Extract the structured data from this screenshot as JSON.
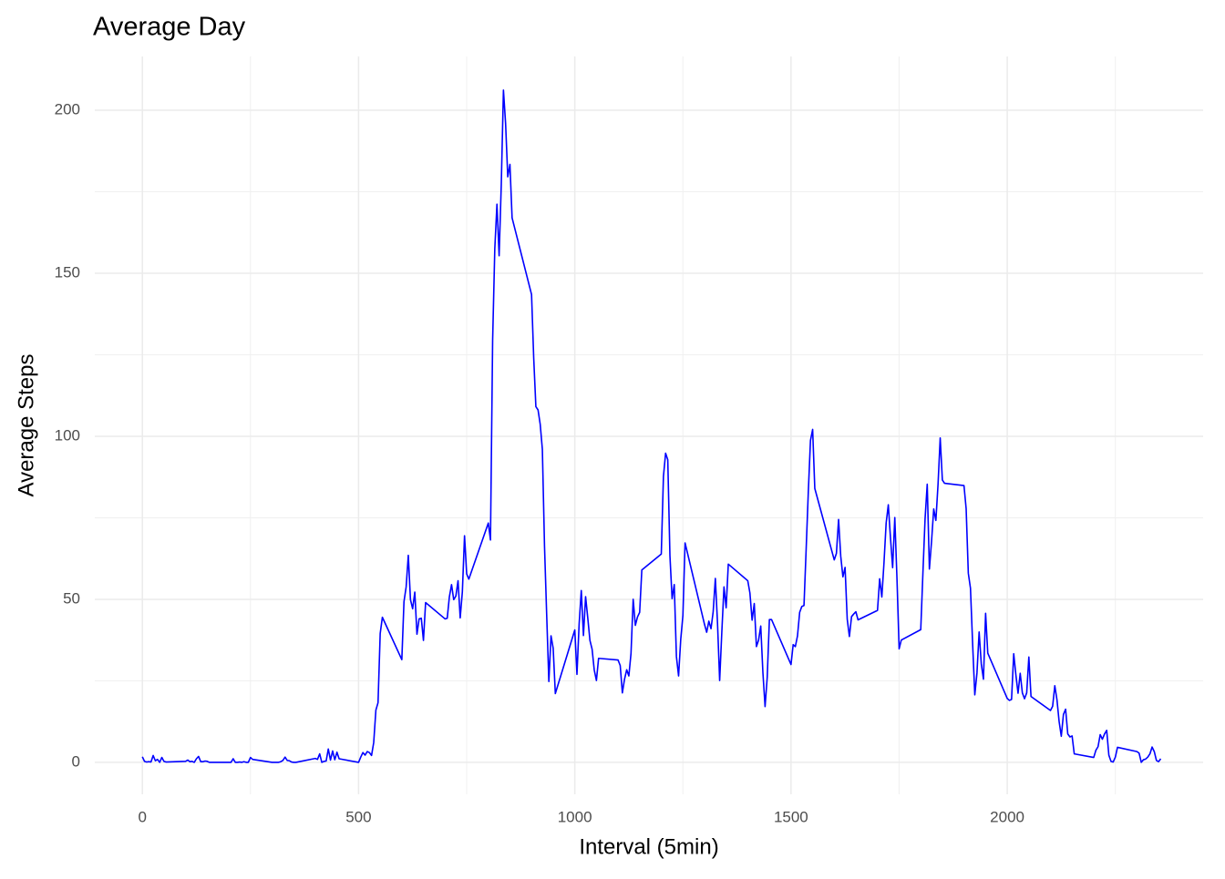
{
  "chart_data": {
    "type": "line",
    "title": "Average Day",
    "x_label": "Interval (5min)",
    "y_label": "Average Steps",
    "color": "#0000ff",
    "x": [
      0,
      5,
      10,
      15,
      20,
      25,
      30,
      35,
      40,
      45,
      50,
      55,
      100,
      105,
      110,
      115,
      120,
      125,
      130,
      135,
      140,
      145,
      150,
      155,
      200,
      205,
      210,
      215,
      220,
      225,
      230,
      235,
      240,
      245,
      250,
      255,
      300,
      305,
      310,
      315,
      320,
      325,
      330,
      335,
      340,
      345,
      350,
      355,
      400,
      405,
      410,
      415,
      420,
      425,
      430,
      435,
      440,
      445,
      450,
      455,
      500,
      505,
      510,
      515,
      520,
      525,
      530,
      535,
      540,
      545,
      550,
      555,
      600,
      605,
      610,
      615,
      620,
      625,
      630,
      635,
      640,
      645,
      650,
      655,
      700,
      705,
      710,
      715,
      720,
      725,
      730,
      735,
      740,
      745,
      750,
      755,
      800,
      805,
      810,
      815,
      820,
      825,
      830,
      835,
      840,
      845,
      850,
      855,
      900,
      905,
      910,
      915,
      920,
      925,
      930,
      935,
      940,
      945,
      950,
      955,
      1000,
      1005,
      1010,
      1015,
      1020,
      1025,
      1030,
      1035,
      1040,
      1045,
      1050,
      1055,
      1100,
      1105,
      1110,
      1115,
      1120,
      1125,
      1130,
      1135,
      1140,
      1145,
      1150,
      1155,
      1200,
      1205,
      1210,
      1215,
      1220,
      1225,
      1230,
      1235,
      1240,
      1245,
      1250,
      1255,
      1300,
      1305,
      1310,
      1315,
      1320,
      1325,
      1330,
      1335,
      1340,
      1345,
      1350,
      1355,
      1400,
      1405,
      1410,
      1415,
      1420,
      1425,
      1430,
      1435,
      1440,
      1445,
      1450,
      1455,
      1500,
      1505,
      1510,
      1515,
      1520,
      1525,
      1530,
      1535,
      1540,
      1545,
      1550,
      1555,
      1600,
      1605,
      1610,
      1615,
      1620,
      1625,
      1630,
      1635,
      1640,
      1645,
      1650,
      1655,
      1700,
      1705,
      1710,
      1715,
      1720,
      1725,
      1730,
      1735,
      1740,
      1745,
      1750,
      1755,
      1800,
      1805,
      1810,
      1815,
      1820,
      1825,
      1830,
      1835,
      1840,
      1845,
      1850,
      1855,
      1900,
      1905,
      1910,
      1915,
      1920,
      1925,
      1930,
      1935,
      1940,
      1945,
      1950,
      1955,
      2000,
      2005,
      2010,
      2015,
      2020,
      2025,
      2030,
      2035,
      2040,
      2045,
      2050,
      2055,
      2100,
      2105,
      2110,
      2115,
      2120,
      2125,
      2130,
      2135,
      2140,
      2145,
      2150,
      2155,
      2200,
      2205,
      2210,
      2215,
      2220,
      2225,
      2230,
      2235,
      2240,
      2245,
      2250,
      2255,
      2300,
      2305,
      2310,
      2315,
      2320,
      2325,
      2330,
      2335,
      2340,
      2345,
      2350,
      2355
    ],
    "values": [
      1.7,
      0.3,
      0.1,
      0.2,
      0.1,
      2.1,
      0.5,
      0.9,
      0,
      1.5,
      0.3,
      0.1,
      0.3,
      0.7,
      0.2,
      0.3,
      0,
      1.1,
      1.8,
      0.2,
      0.2,
      0.4,
      0.3,
      0,
      0,
      0,
      1.1,
      0,
      0,
      0.1,
      0,
      0.2,
      0,
      0,
      1.5,
      0.9,
      0,
      0,
      0,
      0,
      0.2,
      0.6,
      1.6,
      0.6,
      0.5,
      0.1,
      0,
      0,
      1.2,
      0.9,
      2.6,
      0,
      0.3,
      0.4,
      4.1,
      0.7,
      3.5,
      0.8,
      3.1,
      1.1,
      0,
      1.6,
      3,
      2.2,
      3.3,
      3,
      2.1,
      6.1,
      16,
      18.3,
      39.5,
      44.5,
      31.5,
      49.3,
      53.8,
      63.5,
      49.9,
      47.1,
      52.2,
      39.3,
      44,
      44.2,
      37.4,
      49,
      44,
      44.2,
      50.8,
      54.5,
      49.9,
      51,
      55.7,
      44.3,
      52.3,
      69.5,
      57.8,
      56.2,
      73.4,
      68.2,
      129.4,
      157.5,
      171.2,
      155.4,
      177.3,
      206.2,
      195.9,
      179.6,
      183.4,
      167,
      143.5,
      124,
      109.1,
      108.1,
      103.7,
      96,
      66.2,
      45.2,
      24.8,
      38.8,
      35,
      21.1,
      40.6,
      27,
      42.4,
      52.7,
      38.9,
      50.8,
      44.3,
      37.4,
      34.7,
      28.3,
      25.1,
      31.9,
      31.4,
      29.7,
      21.3,
      25.5,
      28.4,
      26.5,
      33.4,
      50,
      42,
      44.6,
      46,
      59,
      63.9,
      87.7,
      94.8,
      92.8,
      63.4,
      50.2,
      54.5,
      32.4,
      26.5,
      37.7,
      45,
      67.3,
      42.3,
      39.9,
      43.3,
      41,
      46.2,
      56.4,
      42.8,
      25.1,
      40,
      53.8,
      47.4,
      60.8,
      55.7,
      51.9,
      43.6,
      48.7,
      35.5,
      37.5,
      41.8,
      27.5,
      17.1,
      26.1,
      43.8,
      43.8,
      30,
      36.1,
      35.5,
      38.8,
      46,
      47.8,
      48.1,
      65.3,
      82.9,
      98.7,
      102.1,
      84,
      62.1,
      64.1,
      74.5,
      63.2,
      56.9,
      59.8,
      43.9,
      38.6,
      44.7,
      45.5,
      46.2,
      43.7,
      46.6,
      56.3,
      50.7,
      61.2,
      73.4,
      79,
      68.9,
      59.7,
      75.1,
      56.5,
      34.8,
      37.5,
      40.7,
      58,
      74.7,
      85.3,
      59.3,
      67.8,
      77.7,
      74.2,
      85.3,
      99.5,
      86.6,
      85.6,
      84.9,
      77.8,
      58,
      53.4,
      36.3,
      20.7,
      27.4,
      40,
      30.2,
      25.5,
      45.7,
      33.5,
      19.6,
      19,
      19.3,
      33.3,
      26.8,
      21.2,
      27.3,
      21.3,
      19.5,
      21.3,
      32.3,
      20.2,
      15.9,
      17.2,
      23.5,
      19.2,
      12.5,
      8,
      14.7,
      16.3,
      8.7,
      7.8,
      8.1,
      2.6,
      1.5,
      3.7,
      4.8,
      8.5,
      7.1,
      8.7,
      9.8,
      2.2,
      0.3,
      0.1,
      1.6,
      4.6,
      3.3,
      2.8,
      0,
      0.8,
      1,
      1.6,
      2.6,
      4.7,
      3.3,
      0.6,
      0.2,
      1.1
    ],
    "xlim": [
      -110,
      2453
    ],
    "ylim": [
      -9.8,
      216.5
    ],
    "xticks": [
      0,
      500,
      1000,
      1500,
      2000
    ],
    "yticks": [
      0,
      50,
      100,
      150,
      200
    ],
    "minor_xticks": [
      250,
      750,
      1250,
      1750,
      2250
    ],
    "minor_yticks": [
      25,
      75,
      125,
      175
    ],
    "grid": true
  }
}
